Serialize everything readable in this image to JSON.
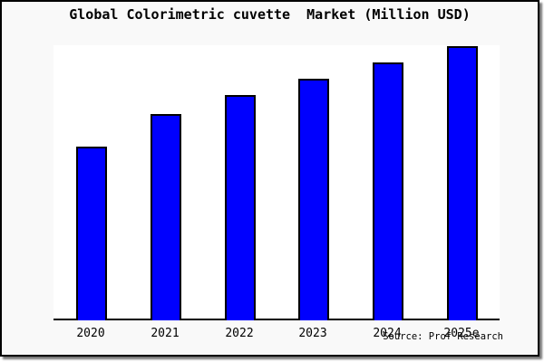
{
  "figure": {
    "title": "Global Colorimetric cuvette  Market (Million USD)",
    "source": "Source: Prof Research"
  },
  "colors": {
    "bar_fill": "#0000fe",
    "bar_border": "#000000",
    "plot_bg": "#ffffff",
    "figure_bg": "#f9f9f9",
    "axis": "#000000"
  },
  "chart_data": {
    "type": "bar",
    "title": "Global Colorimetric cuvette  Market (Million USD)",
    "categories": [
      "2020",
      "2021",
      "2022",
      "2023",
      "2024",
      "2025e"
    ],
    "values": [
      63,
      75,
      82,
      88,
      94,
      100
    ],
    "value_scale_note": "chart shows no y-axis or value labels; values are relative bar heights with 2025e = 100",
    "xlabel": "",
    "ylabel": "",
    "ylim": [
      0,
      100
    ],
    "grid": false,
    "legend": false,
    "annotations": [
      "Source: Prof Research"
    ]
  }
}
